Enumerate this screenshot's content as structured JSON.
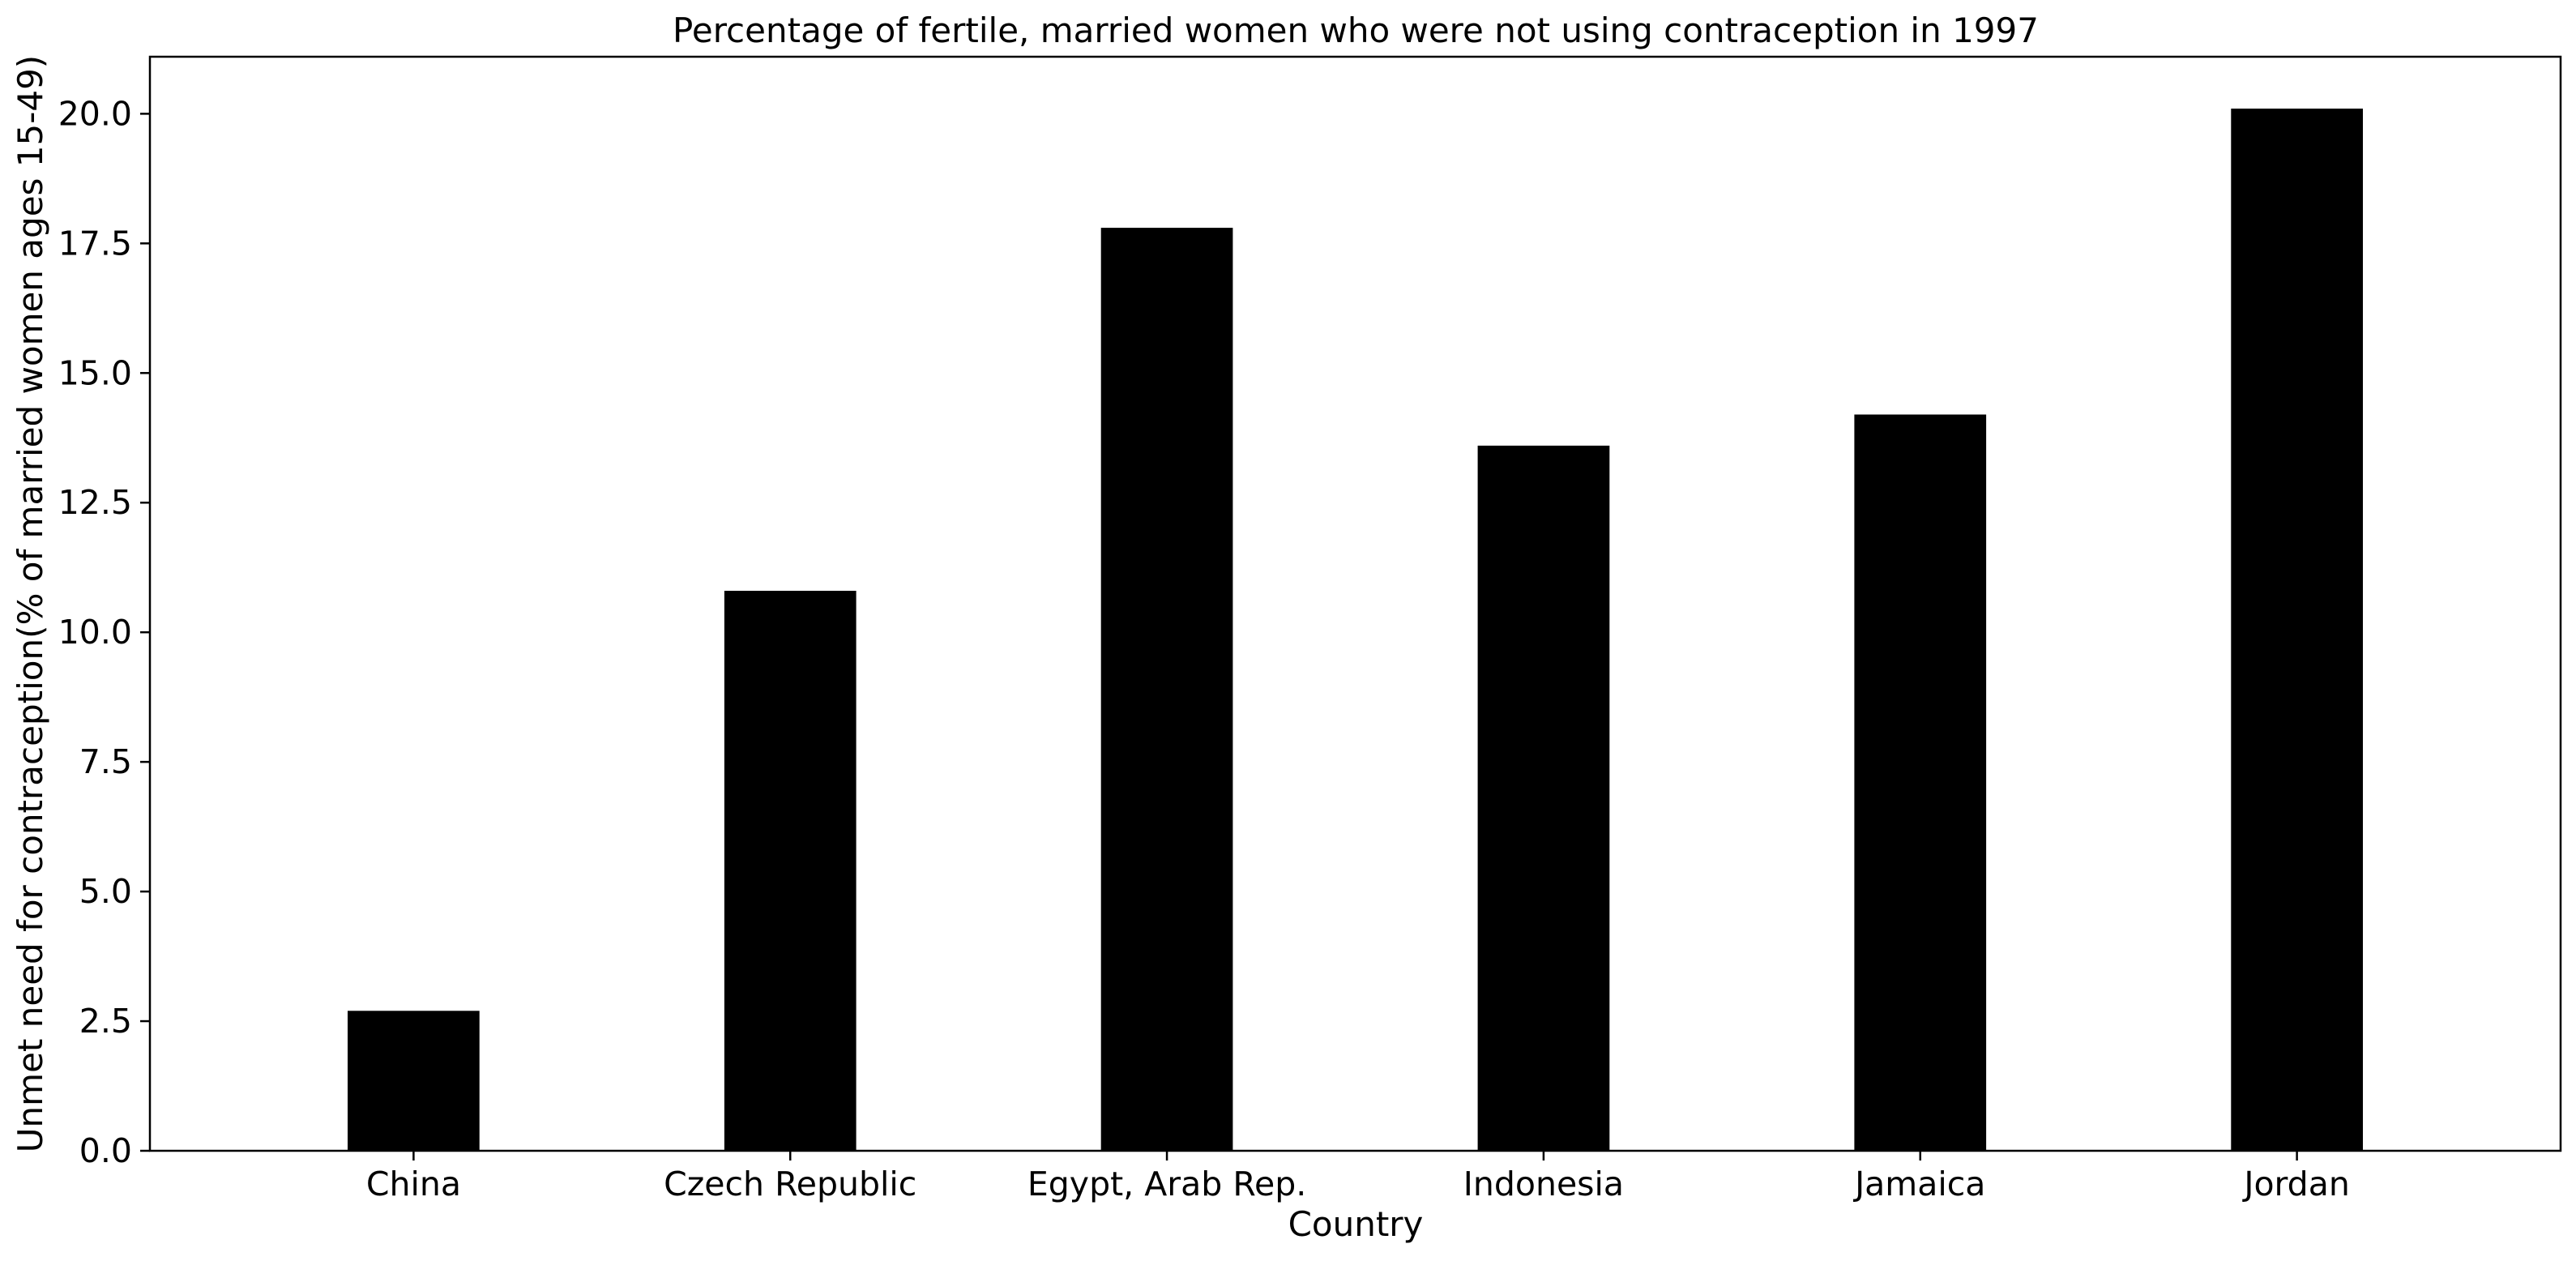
{
  "chart_data": {
    "type": "bar",
    "title": "Percentage of fertile, married women who were not using contraception in 1997",
    "xlabel": "Country",
    "ylabel": "Unmet need for contraception(% of married women ages 15-49)",
    "categories": [
      "China",
      "Czech Republic",
      "Egypt, Arab Rep.",
      "Indonesia",
      "Jamaica",
      "Jordan"
    ],
    "values": [
      2.7,
      10.8,
      17.8,
      13.6,
      14.2,
      20.1
    ],
    "ylim": [
      0,
      21.1
    ],
    "yticks": [
      "0.0",
      "2.5",
      "5.0",
      "7.5",
      "10.0",
      "12.5",
      "15.0",
      "17.5",
      "20.0"
    ],
    "bar_color": "#000000",
    "grid": false,
    "legend": "none"
  }
}
